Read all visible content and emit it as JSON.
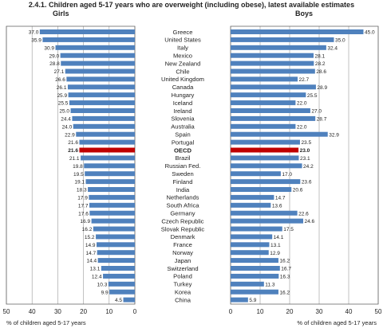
{
  "figure": {
    "title": "2.4.1. Children aged 5-17 years who are overweight (including obese), latest available estimates",
    "left_panel_label": "Girls",
    "right_panel_label": "Boys",
    "left_xlabel": "% of children aged 5-17 years",
    "right_xlabel": "% of children aged 5-17 years"
  },
  "colors": {
    "bar": "#4f81bd",
    "bar_highlight": "#c00000",
    "grid": "#999999",
    "text": "#222222"
  },
  "chart_data": {
    "type": "bar",
    "orientation": "horizontal",
    "highlight": "OECD",
    "categories": [
      "Greece",
      "United States",
      "Italy",
      "Mexico",
      "New Zealand",
      "Chile",
      "United Kingdom",
      "Canada",
      "Hungary",
      "Iceland",
      "Ireland",
      "Slovenia",
      "Australia",
      "Spain",
      "Portugal",
      "OECD",
      "Brazil",
      "Russian Fed.",
      "Sweden",
      "Finland",
      "India",
      "Netherlands",
      "South Africa",
      "Germany",
      "Czech Republic",
      "Slovak Republic",
      "Denmark",
      "France",
      "Norway",
      "Japan",
      "Switzerland",
      "Poland",
      "Turkey",
      "Korea",
      "China"
    ],
    "series": [
      {
        "name": "Girls",
        "values": [
          37.0,
          35.9,
          30.9,
          29.0,
          28.8,
          27.1,
          26.6,
          26.1,
          25.9,
          25.5,
          25.0,
          24.4,
          24.0,
          22.9,
          21.6,
          21.6,
          21.1,
          19.8,
          19.5,
          19.1,
          18.3,
          17.9,
          17.7,
          17.6,
          16.9,
          16.2,
          15.2,
          14.9,
          14.7,
          14.4,
          13.1,
          12.4,
          10.3,
          9.9,
          4.5
        ]
      },
      {
        "name": "Boys",
        "values": [
          45.0,
          35.0,
          32.4,
          28.1,
          28.2,
          28.6,
          22.7,
          28.9,
          25.5,
          22.0,
          27.0,
          28.7,
          22.0,
          32.9,
          23.5,
          23.0,
          23.1,
          24.2,
          17.0,
          23.6,
          20.6,
          14.7,
          13.6,
          22.6,
          24.6,
          17.5,
          14.1,
          13.1,
          12.9,
          16.2,
          16.7,
          16.3,
          11.3,
          16.2,
          5.9
        ]
      }
    ],
    "xlim": [
      0,
      50
    ],
    "x_ticks": [
      0,
      10,
      20,
      30,
      40,
      50
    ],
    "left_axis_direction": "reversed"
  }
}
